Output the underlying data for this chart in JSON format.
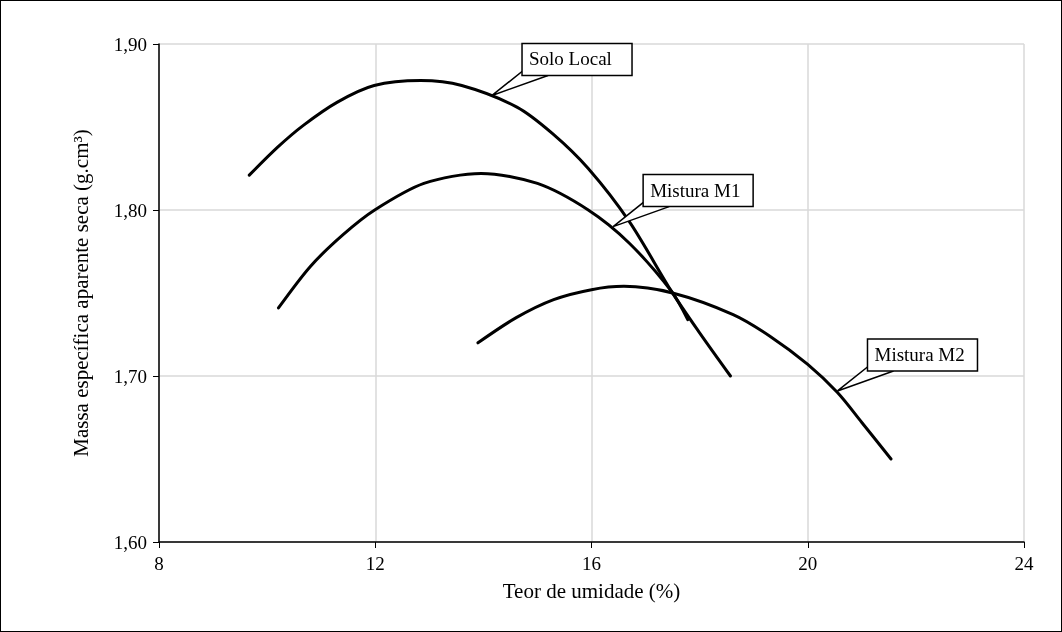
{
  "chart_data": {
    "type": "line",
    "xlabel": "Teor de umidade (%)",
    "ylabel": "Massa específica aparente seca (g.cm³)",
    "xlim": [
      8,
      24
    ],
    "xticks": [
      8,
      12,
      16,
      20,
      24
    ],
    "ylim": [
      1.6,
      1.9
    ],
    "yticks": [
      {
        "value": 1.6,
        "label": "1,60"
      },
      {
        "value": 1.7,
        "label": "1,70"
      },
      {
        "value": 1.8,
        "label": "1,80"
      },
      {
        "value": 1.9,
        "label": "1,90"
      }
    ],
    "grid": true,
    "marker": "none",
    "line_style": "solid",
    "series": [
      {
        "color": "#000000",
        "x": [
          9.67,
          10.2,
          10.67,
          11.3,
          11.98,
          12.84,
          13.6,
          14.62,
          15.28,
          15.94,
          16.7,
          17.48,
          18.0,
          18.57
        ],
        "values": [
          1.821,
          1.838,
          1.851,
          1.865,
          1.875,
          1.878,
          1.875,
          1.862,
          1.846,
          1.825,
          1.793,
          1.751,
          1.726,
          1.7
        ]
      },
      {
        "color": "#000000",
        "x": [
          10.21,
          10.8,
          11.4,
          11.99,
          12.9,
          13.96,
          15.0,
          15.94,
          16.7,
          17.48,
          17.78
        ],
        "values": [
          1.741,
          1.766,
          1.785,
          1.8,
          1.816,
          1.822,
          1.816,
          1.8,
          1.78,
          1.751,
          1.734
        ]
      },
      {
        "color": "#000000",
        "x": [
          13.9,
          14.6,
          15.3,
          16.0,
          16.6,
          17.5,
          18.62,
          19.3,
          20.0,
          20.55,
          21.0,
          21.54
        ],
        "values": [
          1.72,
          1.735,
          1.746,
          1.752,
          1.754,
          1.75,
          1.737,
          1.724,
          1.707,
          1.69,
          1.672,
          1.65
        ]
      }
    ],
    "annotations": [
      {
        "text": "Solo Local",
        "x": 14.16,
        "y": 1.869
      },
      {
        "text": "Mistura M1",
        "x": 16.4,
        "y": 1.79
      },
      {
        "text": "Mistura M2",
        "x": 20.55,
        "y": 1.691
      }
    ]
  }
}
